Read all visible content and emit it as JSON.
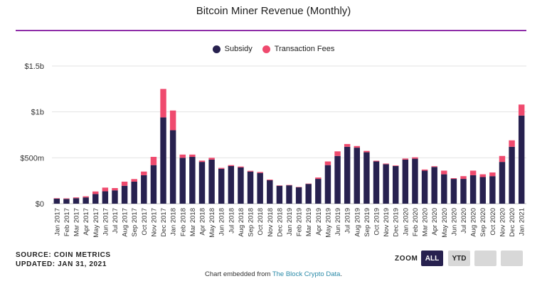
{
  "title": "Bitcoin Miner Revenue (Monthly)",
  "legend": {
    "subsidy_label": "Subsidy",
    "fees_label": "Transaction Fees"
  },
  "colors": {
    "subsidy": "#27214f",
    "fees": "#ef4a6e",
    "accent": "#8e2da8"
  },
  "footer": {
    "source": "SOURCE: COIN METRICS",
    "updated": "UPDATED: JAN 31, 2021"
  },
  "zoom": {
    "label": "ZOOM",
    "all": "ALL",
    "ytd": "YTD"
  },
  "embed": {
    "prefix": "Chart embedded from ",
    "link": "The Block Crypto Data",
    "suffix": "."
  },
  "chart_data": {
    "type": "bar",
    "stacked": true,
    "title": "Bitcoin Miner Revenue (Monthly)",
    "ylim": [
      0,
      1500000000
    ],
    "yticks": [
      0,
      500000000,
      1000000000,
      1500000000
    ],
    "ytick_labels": [
      "$0",
      "$500m",
      "$1b",
      "$1.5b"
    ],
    "legend_position": "top-center",
    "categories": [
      "Jan 2017",
      "Feb 2017",
      "Mar 2017",
      "Apr 2017",
      "May 2017",
      "Jun 2017",
      "Jul 2017",
      "Aug 2017",
      "Sep 2017",
      "Oct 2017",
      "Nov 2017",
      "Dec 2017",
      "Jan 2018",
      "Feb 2018",
      "Mar 2018",
      "Apr 2018",
      "May 2018",
      "Jun 2018",
      "Jul 2018",
      "Aug 2018",
      "Sep 2018",
      "Oct 2018",
      "Nov 2018",
      "Dec 2018",
      "Jan 2019",
      "Feb 2019",
      "Mar 2019",
      "Apr 2019",
      "May 2019",
      "Jun 2019",
      "Jul 2019",
      "Aug 2019",
      "Sep 2019",
      "Oct 2019",
      "Nov 2019",
      "Dec 2019",
      "Jan 2020",
      "Feb 2020",
      "Mar 2020",
      "Apr 2020",
      "May 2020",
      "Jun 2020",
      "Jul 2020",
      "Aug 2020",
      "Sep 2020",
      "Oct 2020",
      "Nov 2020",
      "Dec 2020",
      "Jan 2021"
    ],
    "series": [
      {
        "name": "Subsidy",
        "values": [
          55,
          52,
          60,
          68,
          105,
          135,
          145,
          195,
          240,
          310,
          420,
          940,
          800,
          500,
          510,
          455,
          480,
          380,
          410,
          395,
          350,
          335,
          255,
          195,
          200,
          178,
          215,
          270,
          420,
          520,
          620,
          610,
          560,
          460,
          430,
          410,
          480,
          490,
          360,
          400,
          320,
          270,
          270,
          310,
          290,
          300,
          455,
          620,
          960
        ]
      },
      {
        "name": "Transaction Fees",
        "values": [
          5,
          6,
          8,
          12,
          28,
          40,
          25,
          45,
          28,
          40,
          90,
          310,
          215,
          35,
          25,
          14,
          20,
          10,
          10,
          10,
          8,
          10,
          7,
          4,
          4,
          4,
          4,
          15,
          40,
          50,
          30,
          18,
          15,
          8,
          7,
          6,
          12,
          15,
          12,
          8,
          40,
          8,
          30,
          50,
          30,
          40,
          65,
          70,
          120
        ]
      }
    ],
    "unit": "USD millions"
  }
}
